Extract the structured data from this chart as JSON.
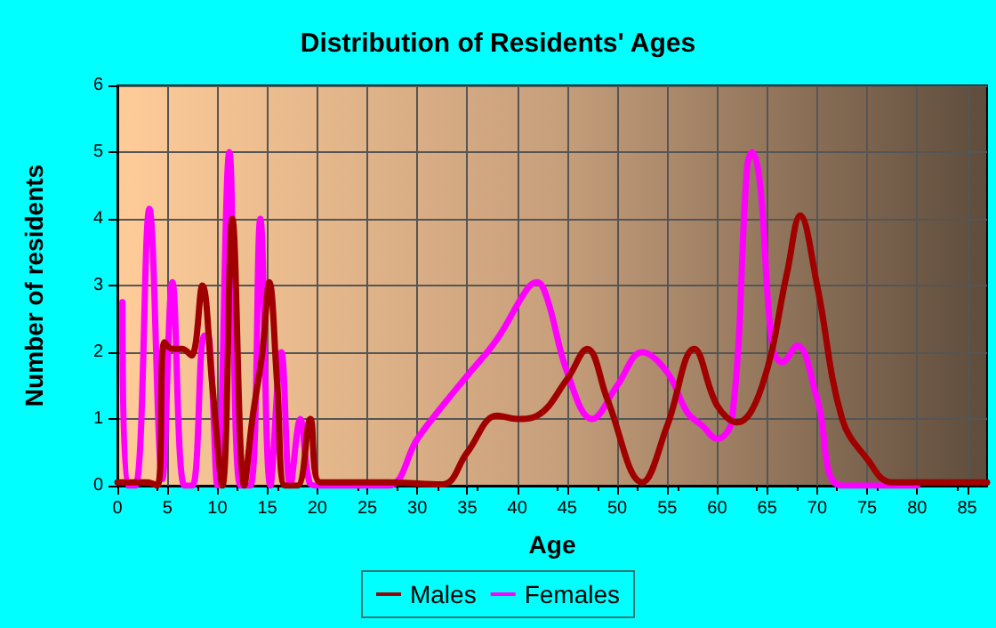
{
  "chart_data": {
    "type": "line",
    "title": "Distribution of Residents' Ages",
    "xlabel": "Age",
    "ylabel": "Number of residents",
    "xlim": [
      0,
      87
    ],
    "xticks": [
      0,
      5,
      10,
      15,
      20,
      25,
      30,
      35,
      40,
      45,
      50,
      55,
      60,
      65,
      70,
      75,
      80,
      85
    ],
    "ylim": [
      0,
      6
    ],
    "yticks": [
      0,
      1,
      2,
      3,
      4,
      5,
      6
    ],
    "grid": true,
    "legend": "bottom",
    "marker": "none",
    "line_style": "solid",
    "series": [
      {
        "name": "Males",
        "color": "#a00000",
        "x": [
          0,
          3,
          4,
          4.7,
          5.5,
          6.5,
          7.4,
          8.5,
          9.5,
          10.5,
          11.5,
          12.7,
          13.5,
          14.5,
          15.2,
          16,
          16.8,
          18,
          19.3,
          20.3,
          27,
          32.5,
          35,
          38,
          40,
          42,
          45,
          47,
          49,
          52.5,
          55,
          57.7,
          60,
          62,
          64.5,
          67,
          68.3,
          70,
          72.5,
          75,
          77.5,
          87
        ],
        "values": [
          0.05,
          0.05,
          0,
          2.15,
          2.05,
          2.05,
          1.95,
          3.0,
          1.5,
          0,
          4.0,
          0,
          1.0,
          2.0,
          3.05,
          1.5,
          0,
          0,
          1.0,
          0.05,
          0.05,
          0.02,
          0.5,
          1.05,
          1.0,
          1.05,
          1.6,
          2.05,
          1.3,
          0.05,
          0.9,
          2.05,
          1.2,
          0.95,
          1.5,
          3.2,
          4.05,
          3.0,
          1.0,
          0.4,
          0.05,
          0.05
        ]
      },
      {
        "name": "Females",
        "color": "#ff00ff",
        "x": [
          0.5,
          1,
          1.8,
          3.2,
          4.5,
          5.5,
          6.7,
          7.5,
          8.7,
          9.2,
          10,
          11.2,
          12.3,
          13.3,
          14.3,
          15.3,
          16.4,
          17.3,
          18.3,
          19.2,
          20,
          27,
          30,
          32,
          35,
          38,
          41,
          42,
          43,
          45,
          47.5,
          50,
          52.5,
          55,
          57,
          58.5,
          60,
          61.5,
          63,
          63.5,
          64.3,
          65.5,
          66.5,
          68,
          70,
          72.5,
          80
        ],
        "values": [
          2.75,
          0,
          0,
          4.15,
          0.1,
          3.05,
          0,
          0,
          2.25,
          2.2,
          0,
          5,
          0,
          0,
          4,
          0,
          2,
          0,
          1,
          0.05,
          0,
          0,
          0.7,
          1.1,
          1.65,
          2.2,
          2.95,
          3.05,
          2.8,
          1.7,
          1.0,
          1.5,
          2.0,
          1.7,
          1.1,
          0.9,
          0.7,
          1.0,
          4.8,
          5.0,
          4.5,
          2.1,
          1.85,
          2.1,
          1.3,
          0,
          0
        ]
      }
    ]
  }
}
